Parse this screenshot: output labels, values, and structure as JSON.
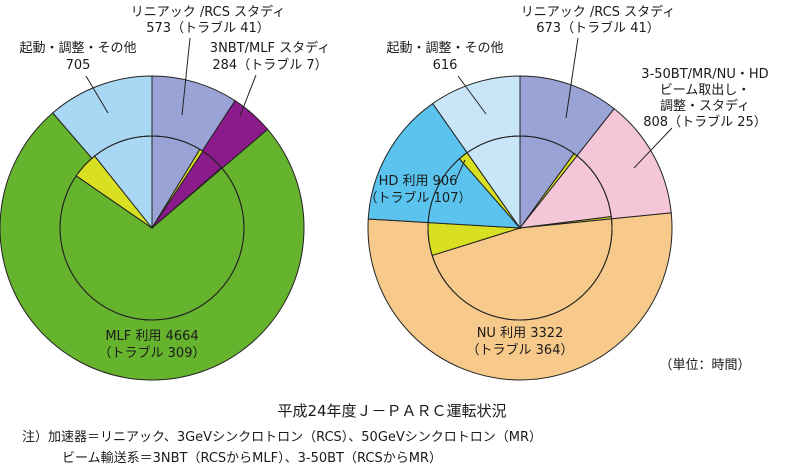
{
  "chart_data": [
    {
      "type": "pie",
      "center": null,
      "outer_slices": [
        {
          "name": "リニアック/RCSスタディ",
          "value": 573,
          "color": "#9aa3d6"
        },
        {
          "name": "3NBT/MLFスタディ",
          "value": 284,
          "color": "#8b1a8a"
        },
        {
          "name": "MLF利用",
          "value": 4664,
          "color": "#66b42e"
        },
        {
          "name": "起動・調整・その他",
          "value": 705,
          "color": "#a8d8f4"
        }
      ],
      "inner_slices": [
        {
          "name": "リニアック/RCSスタディ",
          "value": 573,
          "color": "#9aa3d6"
        },
        {
          "name": "リニアック/RCSスタディ トラブル",
          "value": 41,
          "color": "#d9e021"
        },
        {
          "name": "3NBT/MLFスタディ",
          "value": 284,
          "color": "#8b1a8a"
        },
        {
          "name": "3NBT/MLFスタディ トラブル",
          "value": 7,
          "color": "#d9e021"
        },
        {
          "name": "MLF利用",
          "value": 4664,
          "color": "#66b42e"
        },
        {
          "name": "MLF利用 トラブル",
          "value": 309,
          "color": "#d9e021"
        },
        {
          "name": "起動・調整・その他",
          "value": 705,
          "color": "#a8d8f4"
        }
      ],
      "labels": [
        {
          "lines": [
            "リニアック /RCS スタディ",
            "573（トラブル 41）"
          ]
        },
        {
          "lines": [
            "3NBT/MLF スタディ",
            "284（トラブル 7）"
          ]
        },
        {
          "lines": [
            "MLF 利用 4664",
            "（トラブル 309）"
          ]
        },
        {
          "lines": [
            "起動・調整・その他",
            "705"
          ]
        }
      ]
    },
    {
      "type": "pie",
      "outer_slices": [
        {
          "name": "リニアック/RCSスタディ",
          "value": 673,
          "color": "#9aa3d6"
        },
        {
          "name": "3-50BT/MR/NU・HDビーム取出し・調整・スタディ",
          "value": 808,
          "color": "#f5c6d8"
        },
        {
          "name": "NU利用",
          "value": 3322,
          "color": "#f7c98a"
        },
        {
          "name": "HD利用",
          "value": 906,
          "color": "#5bc4ee"
        },
        {
          "name": "起動・調整・その他",
          "value": 616,
          "color": "#c8e6f8"
        }
      ],
      "labels": [
        {
          "lines": [
            "リニアック /RCS スタディ",
            "673（トラブル 41）"
          ]
        },
        {
          "lines": [
            "3-50BT/MR/NU・HD",
            "ビーム取出し・",
            "調整・スタディ",
            "808（トラブル 25）"
          ]
        },
        {
          "lines": [
            "NU 利用 3322",
            "（トラブル 364）"
          ]
        },
        {
          "lines": [
            "HD 利用 906",
            "（トラブル 107）"
          ]
        },
        {
          "lines": [
            "起動・調整・その他",
            "616"
          ]
        }
      ]
    }
  ],
  "unit_label": "（単位：時間）",
  "title": "平成24年度Ｊ－ＰＡＲＣ運転状況",
  "notes": [
    "注）加速器＝リニアック、3GeVシンクロトロン（RCS）、50GeVシンクロトロン（MR）",
    "ビーム輸送系＝3NBT（RCSからMLF）、3-50BT（RCSからMR）"
  ],
  "colors": {
    "trouble_yellow": "#d9e021",
    "trouble_orange": "#ef7d1a",
    "outline": "#222222"
  }
}
